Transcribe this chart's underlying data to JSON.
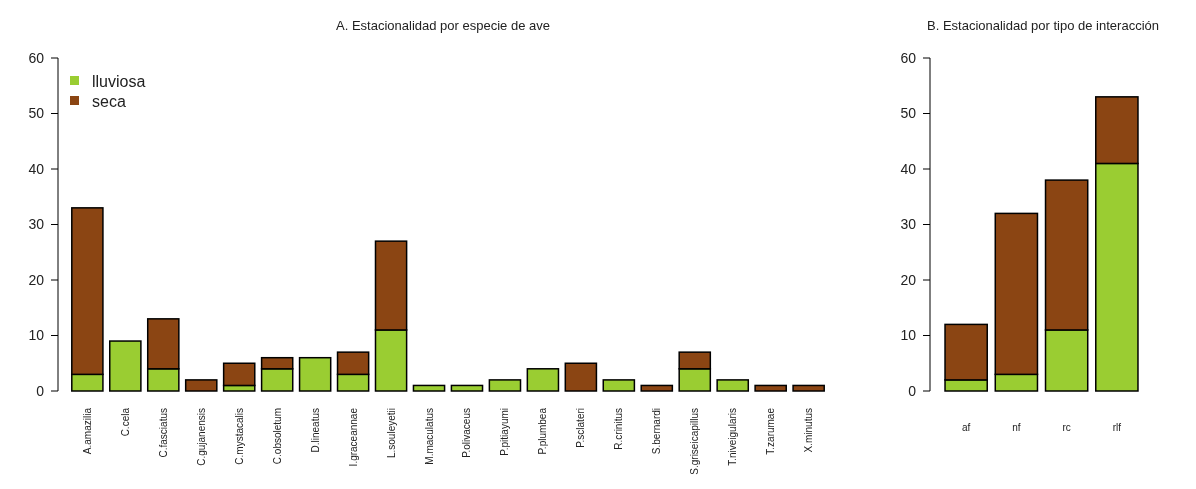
{
  "chart_data": [
    {
      "type": "bar",
      "title": "A. Estacionalidad por especie de ave",
      "stacked": true,
      "legend": "top left",
      "ylim": [
        0,
        60
      ],
      "yticks": [
        0,
        10,
        20,
        30,
        40,
        50,
        60
      ],
      "grid": false,
      "categories": [
        "A.amazilia",
        "C.cela",
        "C.fasciatus",
        "C.gujanensis",
        "C.mystacalis",
        "C.obsoletum",
        "D.lineatus",
        "I.graceannae",
        "L.souleyetii",
        "M.maculatus",
        "P.olivaceus",
        "P.pitiayumi",
        "P.plumbea",
        "P.sclateri",
        "R.crinitus",
        "S.bernardi",
        "S.griseicapillus",
        "T.niveigularis",
        "T.zarumae",
        "X.minutus"
      ],
      "series": [
        {
          "name": "lluviosa",
          "color": "#9acd32",
          "values": [
            3,
            9,
            4,
            0,
            1,
            4,
            6,
            3,
            11,
            1,
            1,
            2,
            4,
            0,
            2,
            0,
            4,
            2,
            0,
            0
          ]
        },
        {
          "name": "seca",
          "color": "#8b4513",
          "values": [
            30,
            0,
            9,
            2,
            4,
            2,
            0,
            4,
            16,
            0,
            0,
            0,
            0,
            5,
            0,
            1,
            3,
            0,
            1,
            1
          ]
        }
      ]
    },
    {
      "type": "bar",
      "title": "B. Estacionalidad por tipo de interacción",
      "stacked": true,
      "legend": false,
      "ylim": [
        0,
        60
      ],
      "yticks": [
        0,
        10,
        20,
        30,
        40,
        50,
        60
      ],
      "grid": false,
      "categories": [
        "af",
        "nf",
        "rc",
        "rlf"
      ],
      "series": [
        {
          "color": "#9acd32",
          "values": [
            2,
            3,
            11,
            41
          ]
        },
        {
          "color": "#8b4513",
          "values": [
            10,
            29,
            27,
            12
          ]
        }
      ]
    }
  ]
}
